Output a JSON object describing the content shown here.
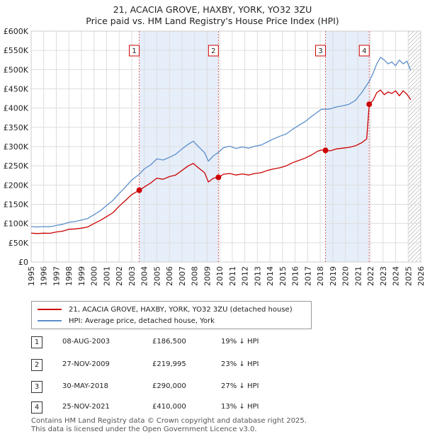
{
  "title_line1": "21, ACACIA GROVE, HAXBY, YORK, YO32 3ZU",
  "title_line2": "Price paid vs. HM Land Registry's House Price Index (HPI)",
  "colors": {
    "property": "#cc0000",
    "hpi": "#5b8fcb",
    "band": "#e6eefa",
    "marker_line": "#e06060",
    "grid": "#dddddd",
    "hatch": "#999999"
  },
  "chart_data": {
    "type": "line",
    "title": "21, ACACIA GROVE, HAXBY, YORK, YO32 3ZU",
    "subtitle": "Price paid vs. HM Land Registry's House Price Index (HPI)",
    "xlabel": "",
    "ylabel": "",
    "xlim": [
      1995,
      2026
    ],
    "ylim": [
      0,
      600000
    ],
    "grid": true,
    "y_ticks": [
      {
        "value": 0,
        "label": "£0"
      },
      {
        "value": 50000,
        "label": "£50K"
      },
      {
        "value": 100000,
        "label": "£100K"
      },
      {
        "value": 150000,
        "label": "£150K"
      },
      {
        "value": 200000,
        "label": "£200K"
      },
      {
        "value": 250000,
        "label": "£250K"
      },
      {
        "value": 300000,
        "label": "£300K"
      },
      {
        "value": 350000,
        "label": "£350K"
      },
      {
        "value": 400000,
        "label": "£400K"
      },
      {
        "value": 450000,
        "label": "£450K"
      },
      {
        "value": 500000,
        "label": "£500K"
      },
      {
        "value": 550000,
        "label": "£550K"
      },
      {
        "value": 600000,
        "label": "£600K"
      }
    ],
    "x_ticks": [
      "1995",
      "1996",
      "1997",
      "1998",
      "1999",
      "2000",
      "2001",
      "2002",
      "2003",
      "2004",
      "2005",
      "2006",
      "2007",
      "2008",
      "2009",
      "2010",
      "2011",
      "2012",
      "2013",
      "2014",
      "2015",
      "2016",
      "2017",
      "2018",
      "2019",
      "2020",
      "2021",
      "2022",
      "2023",
      "2024",
      "2025",
      "2026"
    ],
    "future_hatch_from": 2025.0,
    "series": [
      {
        "name": "21, ACACIA GROVE, HAXBY, YORK, YO32 3ZU (detached house)",
        "color": "#cc0000",
        "x": [
          1995.0,
          1995.5,
          1996.0,
          1996.5,
          1997.0,
          1997.5,
          1998.0,
          1998.5,
          1999.0,
          1999.5,
          2000.0,
          2000.5,
          2001.0,
          2001.5,
          2002.0,
          2002.5,
          2003.0,
          2003.6,
          2004.0,
          2004.5,
          2005.0,
          2005.5,
          2006.0,
          2006.5,
          2007.0,
          2007.5,
          2007.9,
          2008.3,
          2008.8,
          2009.1,
          2009.5,
          2009.9,
          2010.3,
          2010.8,
          2011.3,
          2011.8,
          2012.3,
          2012.8,
          2013.3,
          2013.8,
          2014.3,
          2014.8,
          2015.3,
          2015.8,
          2016.3,
          2016.8,
          2017.3,
          2017.8,
          2018.1,
          2018.42,
          2018.8,
          2019.3,
          2019.8,
          2020.3,
          2020.8,
          2021.3,
          2021.7,
          2021.9,
          2022.2,
          2022.5,
          2022.8,
          2023.1,
          2023.4,
          2023.7,
          2024.0,
          2024.3,
          2024.6,
          2024.9,
          2025.2
        ],
        "values": [
          75000,
          74000,
          75000,
          74500,
          78000,
          80000,
          85000,
          86000,
          88000,
          91000,
          100000,
          108000,
          118000,
          128000,
          145000,
          160000,
          175000,
          186500,
          195000,
          205000,
          218000,
          215000,
          222000,
          226000,
          238000,
          250000,
          256000,
          245000,
          232000,
          208000,
          218000,
          219995,
          228000,
          230000,
          226000,
          229000,
          226000,
          230000,
          232000,
          238000,
          242000,
          245000,
          250000,
          258000,
          264000,
          270000,
          278000,
          288000,
          291000,
          290000,
          289000,
          294000,
          296000,
          298000,
          302000,
          310000,
          320000,
          410000,
          420000,
          440000,
          447000,
          435000,
          442000,
          438000,
          445000,
          432000,
          445000,
          436000,
          422000
        ]
      },
      {
        "name": "HPI: Average price, detached house, York",
        "color": "#5b8fcb",
        "x": [
          1995.0,
          1995.5,
          1996.0,
          1996.5,
          1997.0,
          1997.5,
          1998.0,
          1998.5,
          1999.0,
          1999.5,
          2000.0,
          2000.5,
          2001.0,
          2001.5,
          2002.0,
          2002.5,
          2003.0,
          2003.6,
          2004.0,
          2004.5,
          2005.0,
          2005.5,
          2006.0,
          2006.5,
          2007.0,
          2007.5,
          2007.9,
          2008.3,
          2008.8,
          2009.1,
          2009.5,
          2009.9,
          2010.3,
          2010.8,
          2011.3,
          2011.8,
          2012.3,
          2012.8,
          2013.3,
          2013.8,
          2014.3,
          2014.8,
          2015.3,
          2015.8,
          2016.3,
          2016.8,
          2017.3,
          2017.8,
          2018.1,
          2018.42,
          2018.8,
          2019.3,
          2019.8,
          2020.3,
          2020.8,
          2021.3,
          2021.7,
          2021.9,
          2022.2,
          2022.5,
          2022.8,
          2023.1,
          2023.4,
          2023.7,
          2024.0,
          2024.3,
          2024.6,
          2024.9,
          2025.2
        ],
        "values": [
          92000,
          91000,
          92000,
          91500,
          95000,
          98000,
          103000,
          105000,
          109000,
          113000,
          123000,
          133000,
          147000,
          160000,
          178000,
          195000,
          213000,
          228000,
          242000,
          252000,
          268000,
          265000,
          272000,
          280000,
          294000,
          306000,
          314000,
          300000,
          284000,
          262000,
          276000,
          285000,
          297000,
          301000,
          295000,
          299000,
          296000,
          301000,
          304000,
          312000,
          320000,
          327000,
          333000,
          345000,
          355000,
          365000,
          378000,
          390000,
          397000,
          397000,
          398000,
          403000,
          406000,
          410000,
          420000,
          440000,
          460000,
          470000,
          490000,
          515000,
          532000,
          525000,
          515000,
          520000,
          510000,
          525000,
          515000,
          522000,
          498000
        ]
      }
    ],
    "sales": [
      {
        "num": "1",
        "x": 2003.6,
        "value": 186500,
        "date": "08-AUG-2003",
        "price": "£186,500",
        "hpi": "19% ↓ HPI"
      },
      {
        "num": "2",
        "x": 2009.9,
        "value": 219995,
        "date": "27-NOV-2009",
        "price": "£219,995",
        "hpi": "23% ↓ HPI"
      },
      {
        "num": "3",
        "x": 2018.42,
        "value": 290000,
        "date": "30-MAY-2018",
        "price": "£290,000",
        "hpi": "27% ↓ HPI"
      },
      {
        "num": "4",
        "x": 2021.9,
        "value": 410000,
        "date": "25-NOV-2021",
        "price": "£410,000",
        "hpi": "13% ↓ HPI"
      }
    ],
    "shaded_periods": [
      [
        2003.6,
        2009.9
      ],
      [
        2018.42,
        2021.9
      ]
    ]
  },
  "legend": {
    "property_label": "21, ACACIA GROVE, HAXBY, YORK, YO32 3ZU (detached house)",
    "hpi_label": "HPI: Average price, detached house, York"
  },
  "footer": {
    "line1": "Contains HM Land Registry data © Crown copyright and database right 2025.",
    "line2": "This data is licensed under the Open Government Licence v3.0."
  }
}
